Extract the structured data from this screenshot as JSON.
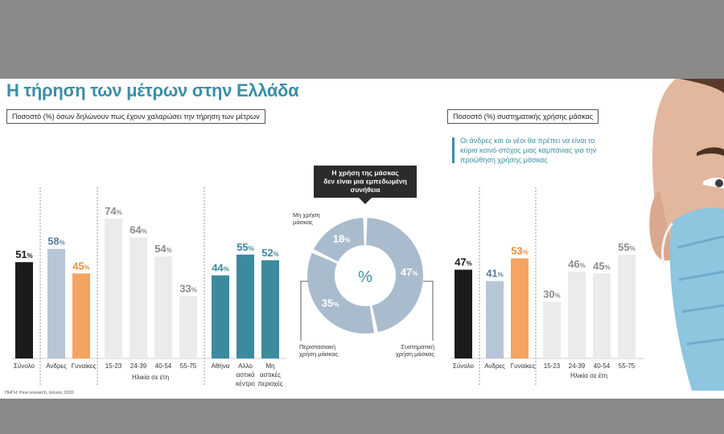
{
  "title": "Η τήρηση των μέτρων στην Ελλάδα",
  "left_panel_label": "Ποσοστό (%) όσων δηλώνουν πως έχουν χαλαρώσει την τήρηση των μέτρων",
  "right_panel_label": "Ποσοστό (%) συστηματικής χρήσης μάσκας",
  "note_text": "Οι άνδρες και οι νέοι θα πρέπει να είναι το κύριο κοινό-στόχος μιας καμπάνιας για την προώθηση χρήσης μάσκας",
  "source": "ΠΗΓΗ: Pew research, Ιούνιος 2020",
  "colors": {
    "accent": "#3b8fa5",
    "black": "#1b1b1b",
    "men": "#b6c6d6",
    "women": "#f4a460",
    "age": "#ebebeb",
    "area": "#3d8a9f",
    "donut": "#a9bccd"
  },
  "chart_data": [
    {
      "type": "bar",
      "categories": [
        "Σύνολο",
        "Ανδρες",
        "Γυναίκες",
        "15-23",
        "24-39",
        "40-54",
        "55-75",
        "Αθήνα",
        "Αλλο αστικό κέντρο",
        "Μη αστικές περιοχές"
      ],
      "values": [
        51,
        58,
        45,
        74,
        64,
        54,
        33,
        44,
        55,
        52
      ],
      "group_label": "Ηλικία σε έτη",
      "unit": "%",
      "ylim": [
        0,
        80
      ]
    },
    {
      "type": "pie",
      "title": "Η χρήση της μάσκας δεν είναι μια εμπεδωμένη συνήθεια",
      "center_label": "%",
      "labels": [
        "Συστηματική χρήση μάσκας",
        "Περιστασιακή χρήση μάσκας",
        "Μη χρήση μάσκας"
      ],
      "values": [
        47,
        35,
        18
      ]
    },
    {
      "type": "bar",
      "categories": [
        "Σύνολο",
        "Ανδρες",
        "Γυναίκες",
        "15-23",
        "24-39",
        "40-54",
        "55-75"
      ],
      "values": [
        47,
        41,
        53,
        30,
        46,
        45,
        55
      ],
      "group_label": "Ηλικία σε έτη",
      "unit": "%",
      "ylim": [
        0,
        80
      ]
    }
  ]
}
